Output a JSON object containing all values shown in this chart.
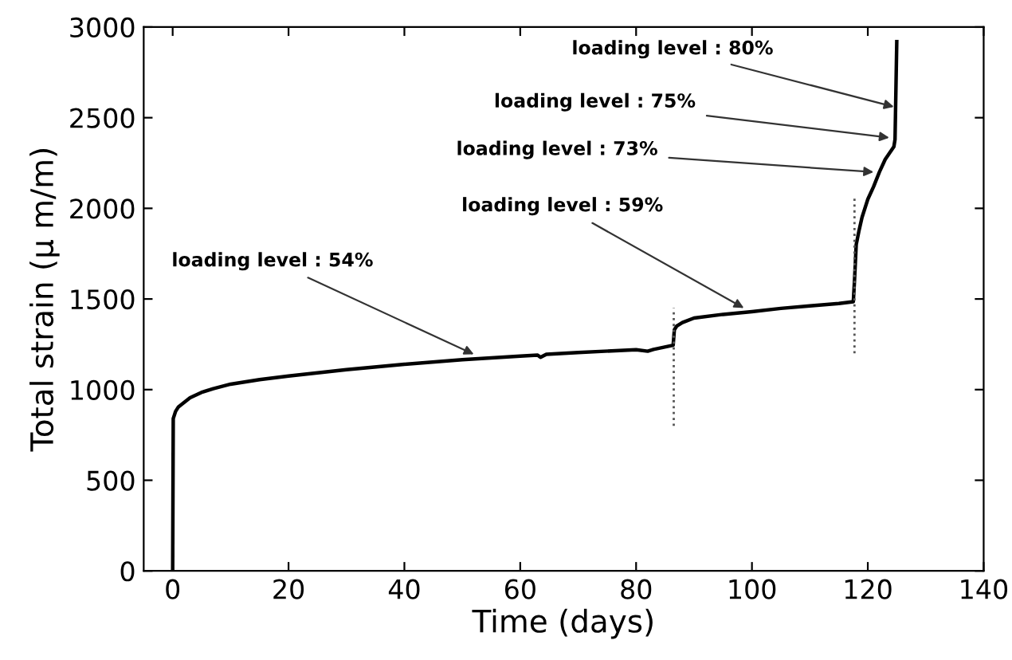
{
  "chart_data": {
    "type": "line",
    "xlabel": "Time (days)",
    "ylabel": "Total strain (μ m/m)",
    "xlim": [
      -5,
      140
    ],
    "xticks": [
      0,
      20,
      40,
      60,
      80,
      100,
      120,
      140
    ],
    "ylim": [
      0,
      3000
    ],
    "yticks": [
      0,
      500,
      1000,
      1500,
      2000,
      2500,
      3000
    ],
    "grid": false,
    "legend": false,
    "marker": "none",
    "series": [
      {
        "color": "#000000",
        "line_style": "solid",
        "x": [
          0,
          0.1,
          0.5,
          1,
          2,
          3,
          5,
          7,
          10,
          15,
          20,
          30,
          40,
          50,
          60,
          63,
          63.5,
          64.5,
          70,
          80,
          82,
          83,
          86.4,
          86.6,
          87,
          88,
          90,
          95,
          100,
          105,
          110,
          115,
          117.5,
          117.7,
          118,
          118.5,
          119,
          120,
          121,
          122,
          123,
          124.5,
          124.7,
          125
        ],
        "values": [
          0,
          840,
          880,
          905,
          930,
          955,
          985,
          1005,
          1030,
          1055,
          1075,
          1110,
          1140,
          1165,
          1185,
          1190,
          1178,
          1195,
          1205,
          1220,
          1212,
          1222,
          1245,
          1330,
          1350,
          1370,
          1395,
          1415,
          1430,
          1448,
          1462,
          1475,
          1485,
          1600,
          1800,
          1880,
          1950,
          2050,
          2120,
          2200,
          2270,
          2340,
          2380,
          2920
        ]
      },
      {
        "color": "#555555",
        "line_style": "dotted",
        "x": [
          86.5,
          86.5
        ],
        "values": [
          800,
          1450
        ]
      },
      {
        "color": "#555555",
        "line_style": "dotted",
        "x": [
          117.7,
          117.7
        ],
        "values": [
          1200,
          2060
        ]
      }
    ],
    "annotations": [
      {
        "text": "loading level : 54%",
        "x": 52,
        "y": 1195
      },
      {
        "text": "loading level : 59%",
        "x": 98.6,
        "y": 1450
      },
      {
        "text": "loading level : 73%",
        "x": 121,
        "y": 2200
      },
      {
        "text": "loading level : 75%",
        "x": 123.7,
        "y": 2390
      },
      {
        "text": "loading level : 80%",
        "x": 124.5,
        "y": 2560
      }
    ]
  }
}
